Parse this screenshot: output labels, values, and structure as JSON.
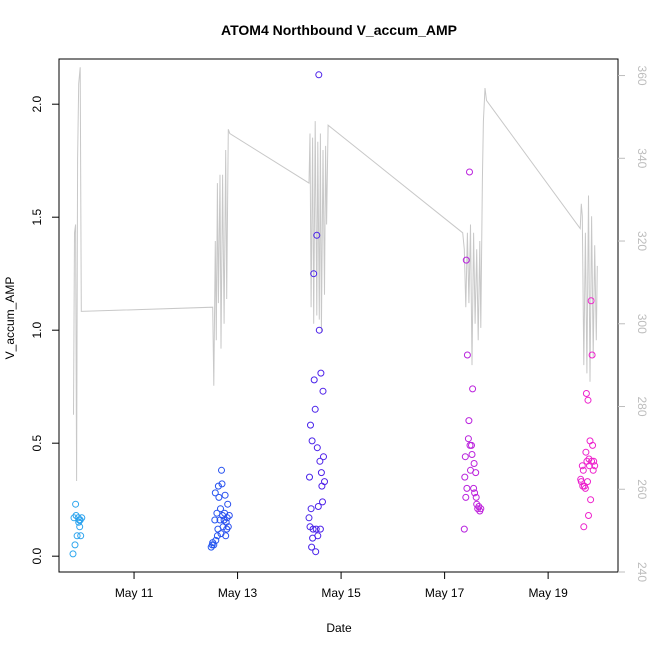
{
  "chart_data": {
    "type": "scatter",
    "title": "ATOM4 Northbound V_accum_AMP",
    "xlabel": "Date",
    "ylabel": "V_accum_AMP",
    "x_ticks": [
      "May 11",
      "May 13",
      "May 15",
      "May 17",
      "May 19"
    ],
    "x_tick_days": [
      11,
      13,
      15,
      17,
      19
    ],
    "xlim": [
      9.55,
      20.35
    ],
    "ylim": [
      -0.07,
      2.2
    ],
    "y_ticks": [
      "0.0",
      "0.5",
      "1.0",
      "1.5",
      "2.0"
    ],
    "y_tick_values": [
      0,
      0.5,
      1,
      1.5,
      2
    ],
    "y2lim": [
      240,
      364
    ],
    "y2_ticks": [
      "240",
      "260",
      "280",
      "300",
      "320",
      "340",
      "360"
    ],
    "y2_tick_values": [
      240,
      260,
      280,
      300,
      320,
      340,
      360
    ],
    "grid": false,
    "line_color": "#c8c8c8",
    "line_series": {
      "values": [
        [
          9.83,
          278
        ],
        [
          9.85,
          322
        ],
        [
          9.87,
          324
        ],
        [
          9.89,
          262
        ],
        [
          9.91,
          340
        ],
        [
          9.93,
          358
        ],
        [
          9.96,
          362
        ],
        [
          9.98,
          303
        ],
        [
          12.52,
          304
        ],
        [
          12.54,
          285
        ],
        [
          12.57,
          320
        ],
        [
          12.59,
          296
        ],
        [
          12.61,
          334
        ],
        [
          12.63,
          305
        ],
        [
          12.66,
          336
        ],
        [
          12.68,
          294
        ],
        [
          12.71,
          336
        ],
        [
          12.74,
          300
        ],
        [
          12.77,
          342
        ],
        [
          12.79,
          306
        ],
        [
          12.82,
          347
        ],
        [
          12.85,
          346
        ],
        [
          14.38,
          334
        ],
        [
          14.4,
          346
        ],
        [
          14.42,
          304
        ],
        [
          14.45,
          345
        ],
        [
          14.47,
          300
        ],
        [
          14.5,
          349
        ],
        [
          14.53,
          302
        ],
        [
          14.55,
          344
        ],
        [
          14.58,
          301
        ],
        [
          14.6,
          346
        ],
        [
          14.62,
          298
        ],
        [
          14.65,
          342
        ],
        [
          14.68,
          307
        ],
        [
          14.7,
          343
        ],
        [
          14.72,
          324
        ],
        [
          14.75,
          348
        ],
        [
          17.35,
          322
        ],
        [
          17.38,
          318
        ],
        [
          17.41,
          304
        ],
        [
          17.44,
          322
        ],
        [
          17.47,
          305
        ],
        [
          17.5,
          324
        ],
        [
          17.53,
          290
        ],
        [
          17.56,
          322
        ],
        [
          17.59,
          300
        ],
        [
          17.62,
          318
        ],
        [
          17.65,
          296
        ],
        [
          17.68,
          320
        ],
        [
          17.7,
          299
        ],
        [
          17.73,
          335
        ],
        [
          17.75,
          349
        ],
        [
          17.78,
          357
        ],
        [
          17.81,
          354
        ],
        [
          19.62,
          323
        ],
        [
          19.64,
          329
        ],
        [
          19.66,
          326
        ],
        [
          19.69,
          290
        ],
        [
          19.72,
          322
        ],
        [
          19.75,
          288
        ],
        [
          19.78,
          331
        ],
        [
          19.81,
          286
        ],
        [
          19.84,
          326
        ],
        [
          19.87,
          292
        ],
        [
          19.9,
          319
        ],
        [
          19.93,
          296
        ],
        [
          19.95,
          314
        ]
      ]
    },
    "points": [
      [
        9.82,
        0.01
      ],
      [
        9.84,
        0.17
      ],
      [
        9.86,
        0.05
      ],
      [
        9.87,
        0.23
      ],
      [
        9.88,
        0.18
      ],
      [
        9.9,
        0.09
      ],
      [
        9.92,
        0.17
      ],
      [
        9.93,
        0.15
      ],
      [
        9.94,
        0.16
      ],
      [
        9.95,
        0.13
      ],
      [
        9.96,
        0.16
      ],
      [
        9.97,
        0.09
      ],
      [
        9.99,
        0.17
      ],
      [
        12.49,
        0.04
      ],
      [
        12.51,
        0.05
      ],
      [
        12.52,
        0.06
      ],
      [
        12.54,
        0.05
      ],
      [
        12.56,
        0.16
      ],
      [
        12.57,
        0.28
      ],
      [
        12.58,
        0.07
      ],
      [
        12.6,
        0.19
      ],
      [
        12.61,
        0.09
      ],
      [
        12.62,
        0.12
      ],
      [
        12.63,
        0.31
      ],
      [
        12.64,
        0.26
      ],
      [
        12.66,
        0.16
      ],
      [
        12.67,
        0.21
      ],
      [
        12.68,
        0.1
      ],
      [
        12.69,
        0.38
      ],
      [
        12.7,
        0.32
      ],
      [
        12.71,
        0.18
      ],
      [
        12.72,
        0.13
      ],
      [
        12.74,
        0.16
      ],
      [
        12.75,
        0.19
      ],
      [
        12.76,
        0.27
      ],
      [
        12.77,
        0.09
      ],
      [
        12.78,
        0.15
      ],
      [
        12.79,
        0.12
      ],
      [
        12.8,
        0.17
      ],
      [
        12.81,
        0.23
      ],
      [
        12.82,
        0.13
      ],
      [
        12.84,
        0.18
      ],
      [
        14.38,
        0.17
      ],
      [
        14.39,
        0.35
      ],
      [
        14.4,
        0.13
      ],
      [
        14.41,
        0.58
      ],
      [
        14.42,
        0.21
      ],
      [
        14.43,
        0.04
      ],
      [
        14.44,
        0.51
      ],
      [
        14.45,
        0.08
      ],
      [
        14.46,
        0.12
      ],
      [
        14.47,
        1.25
      ],
      [
        14.48,
        0.78
      ],
      [
        14.5,
        0.65
      ],
      [
        14.51,
        0.02
      ],
      [
        14.52,
        0.12
      ],
      [
        14.53,
        1.42
      ],
      [
        14.54,
        0.48
      ],
      [
        14.55,
        0.09
      ],
      [
        14.56,
        0.22
      ],
      [
        14.57,
        2.13
      ],
      [
        14.58,
        1.0
      ],
      [
        14.59,
        0.42
      ],
      [
        14.6,
        0.12
      ],
      [
        14.61,
        0.81
      ],
      [
        14.62,
        0.37
      ],
      [
        14.63,
        0.31
      ],
      [
        14.64,
        0.24
      ],
      [
        14.65,
        0.73
      ],
      [
        14.66,
        0.44
      ],
      [
        14.68,
        0.33
      ],
      [
        17.38,
        0.12
      ],
      [
        17.39,
        0.35
      ],
      [
        17.4,
        0.44
      ],
      [
        17.41,
        0.26
      ],
      [
        17.42,
        1.31
      ],
      [
        17.43,
        0.3
      ],
      [
        17.44,
        0.89
      ],
      [
        17.46,
        0.52
      ],
      [
        17.47,
        0.6
      ],
      [
        17.48,
        1.7
      ],
      [
        17.49,
        0.49
      ],
      [
        17.5,
        0.38
      ],
      [
        17.52,
        0.49
      ],
      [
        17.53,
        0.45
      ],
      [
        17.54,
        0.74
      ],
      [
        17.56,
        0.3
      ],
      [
        17.57,
        0.41
      ],
      [
        17.58,
        0.28
      ],
      [
        17.6,
        0.37
      ],
      [
        17.61,
        0.26
      ],
      [
        17.62,
        0.23
      ],
      [
        17.64,
        0.21
      ],
      [
        17.66,
        0.22
      ],
      [
        17.68,
        0.2
      ],
      [
        17.7,
        0.21
      ],
      [
        19.63,
        0.34
      ],
      [
        19.64,
        0.33
      ],
      [
        19.66,
        0.4
      ],
      [
        19.67,
        0.31
      ],
      [
        19.68,
        0.38
      ],
      [
        19.69,
        0.13
      ],
      [
        19.7,
        0.31
      ],
      [
        19.72,
        0.3
      ],
      [
        19.73,
        0.46
      ],
      [
        19.74,
        0.72
      ],
      [
        19.75,
        0.42
      ],
      [
        19.76,
        0.33
      ],
      [
        19.77,
        0.69
      ],
      [
        19.78,
        0.18
      ],
      [
        19.79,
        0.43
      ],
      [
        19.8,
        0.4
      ],
      [
        19.81,
        0.51
      ],
      [
        19.82,
        0.25
      ],
      [
        19.83,
        1.13
      ],
      [
        19.84,
        0.42
      ],
      [
        19.85,
        0.89
      ],
      [
        19.86,
        0.49
      ],
      [
        19.87,
        0.38
      ],
      [
        19.88,
        0.42
      ],
      [
        19.9,
        0.4
      ]
    ],
    "point_colors": {
      "stops": [
        {
          "x": 9.8,
          "color": "#2ea8ee"
        },
        {
          "x": 12.6,
          "color": "#2554f0"
        },
        {
          "x": 14.5,
          "color": "#4a22ea"
        },
        {
          "x": 17.5,
          "color": "#bb22dd"
        },
        {
          "x": 19.8,
          "color": "#ee22cc"
        }
      ]
    },
    "axis_color": "#000000",
    "axis_right_color": "#bdbdbd"
  }
}
